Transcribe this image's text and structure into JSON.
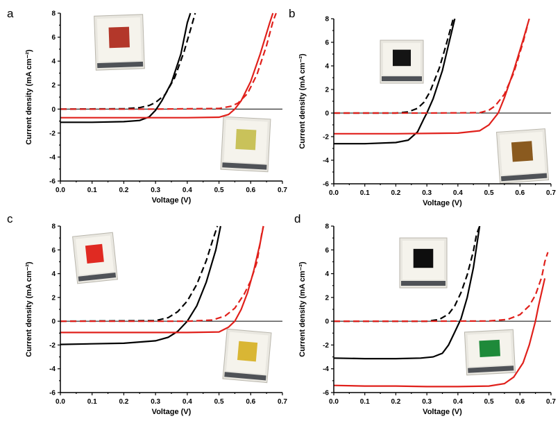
{
  "panels": [
    {
      "letter": "a",
      "device_colors": {
        "photo_top": "#b3372a",
        "photo_bottom": "#c9c25a"
      },
      "chart_data": {
        "type": "line",
        "xlabel": "Voltage (V)",
        "ylabel": "Current density (mA cm⁻²)",
        "xlim": [
          0.0,
          0.7
        ],
        "ylim": [
          -6,
          8
        ],
        "xticks": [
          "0.0",
          "0.1",
          "0.2",
          "0.3",
          "0.4",
          "0.5",
          "0.6",
          "0.7"
        ],
        "yticks": [
          "-6",
          "-4",
          "-2",
          "0",
          "2",
          "4",
          "6",
          "8"
        ],
        "series": [
          {
            "color": "#000000",
            "style": "solid",
            "points": [
              [
                0.0,
                -1.1
              ],
              [
                0.1,
                -1.1
              ],
              [
                0.2,
                -1.05
              ],
              [
                0.25,
                -0.95
              ],
              [
                0.28,
                -0.65
              ],
              [
                0.3,
                -0.1
              ],
              [
                0.32,
                0.7
              ],
              [
                0.35,
                2.2
              ],
              [
                0.38,
                4.6
              ],
              [
                0.4,
                7.2
              ],
              [
                0.41,
                8.0
              ]
            ]
          },
          {
            "color": "#000000",
            "style": "dashed",
            "points": [
              [
                0.0,
                0.0
              ],
              [
                0.2,
                0.03
              ],
              [
                0.25,
                0.12
              ],
              [
                0.28,
                0.3
              ],
              [
                0.3,
                0.55
              ],
              [
                0.33,
                1.2
              ],
              [
                0.36,
                2.6
              ],
              [
                0.39,
                4.8
              ],
              [
                0.41,
                6.6
              ],
              [
                0.425,
                8.0
              ]
            ]
          },
          {
            "color": "#e0201b",
            "style": "solid",
            "points": [
              [
                0.0,
                -0.72
              ],
              [
                0.2,
                -0.72
              ],
              [
                0.4,
                -0.72
              ],
              [
                0.5,
                -0.68
              ],
              [
                0.53,
                -0.45
              ],
              [
                0.55,
                0.0
              ],
              [
                0.57,
                0.7
              ],
              [
                0.6,
                2.3
              ],
              [
                0.63,
                4.6
              ],
              [
                0.66,
                7.2
              ],
              [
                0.67,
                8.0
              ]
            ]
          },
          {
            "color": "#e0201b",
            "style": "dashed",
            "points": [
              [
                0.0,
                0.0
              ],
              [
                0.3,
                0.0
              ],
              [
                0.5,
                0.05
              ],
              [
                0.54,
                0.25
              ],
              [
                0.56,
                0.5
              ],
              [
                0.59,
                1.3
              ],
              [
                0.62,
                2.9
              ],
              [
                0.65,
                5.3
              ],
              [
                0.67,
                7.3
              ],
              [
                0.68,
                8.0
              ]
            ]
          }
        ]
      }
    },
    {
      "letter": "b",
      "device_colors": {
        "photo_top": "#141414",
        "photo_bottom": "#8a5a1f"
      },
      "chart_data": {
        "type": "line",
        "xlabel": "Voltage (V)",
        "ylabel": "Current density (mA cm⁻²)",
        "xlim": [
          0.0,
          0.7
        ],
        "ylim": [
          -6,
          8
        ],
        "xticks": [
          "0.0",
          "0.1",
          "0.2",
          "0.3",
          "0.4",
          "0.5",
          "0.6",
          "0.7"
        ],
        "yticks": [
          "-6",
          "-4",
          "-2",
          "0",
          "2",
          "4",
          "6",
          "8"
        ],
        "series": [
          {
            "color": "#000000",
            "style": "solid",
            "points": [
              [
                0.0,
                -2.6
              ],
              [
                0.1,
                -2.6
              ],
              [
                0.2,
                -2.5
              ],
              [
                0.24,
                -2.3
              ],
              [
                0.27,
                -1.6
              ],
              [
                0.29,
                -0.5
              ],
              [
                0.3,
                0.0
              ],
              [
                0.32,
                1.2
              ],
              [
                0.35,
                3.6
              ],
              [
                0.37,
                5.8
              ],
              [
                0.39,
                8.0
              ]
            ]
          },
          {
            "color": "#000000",
            "style": "dashed",
            "points": [
              [
                0.0,
                0.0
              ],
              [
                0.2,
                0.0
              ],
              [
                0.24,
                0.1
              ],
              [
                0.27,
                0.4
              ],
              [
                0.29,
                0.9
              ],
              [
                0.31,
                1.8
              ],
              [
                0.34,
                3.8
              ],
              [
                0.36,
                5.6
              ],
              [
                0.38,
                7.5
              ],
              [
                0.385,
                8.0
              ]
            ]
          },
          {
            "color": "#e0201b",
            "style": "solid",
            "points": [
              [
                0.0,
                -1.75
              ],
              [
                0.2,
                -1.75
              ],
              [
                0.4,
                -1.7
              ],
              [
                0.47,
                -1.5
              ],
              [
                0.5,
                -1.0
              ],
              [
                0.53,
                0.0
              ],
              [
                0.55,
                1.3
              ],
              [
                0.58,
                3.6
              ],
              [
                0.61,
                6.2
              ],
              [
                0.63,
                8.0
              ]
            ]
          },
          {
            "color": "#e0201b",
            "style": "dashed",
            "points": [
              [
                0.0,
                0.0
              ],
              [
                0.3,
                0.0
              ],
              [
                0.47,
                0.03
              ],
              [
                0.5,
                0.25
              ],
              [
                0.52,
                0.6
              ],
              [
                0.55,
                1.6
              ],
              [
                0.58,
                3.4
              ],
              [
                0.61,
                6.0
              ],
              [
                0.625,
                7.5
              ]
            ]
          }
        ]
      }
    },
    {
      "letter": "c",
      "device_colors": {
        "photo_top": "#e02a22",
        "photo_bottom": "#d9b634"
      },
      "chart_data": {
        "type": "line",
        "xlabel": "Voltage (V)",
        "ylabel": "Current density (mA cm⁻²)",
        "xlim": [
          0.0,
          0.7
        ],
        "ylim": [
          -6,
          8
        ],
        "xticks": [
          "0.0",
          "0.1",
          "0.2",
          "0.3",
          "0.4",
          "0.5",
          "0.6",
          "0.7"
        ],
        "yticks": [
          "-6",
          "-4",
          "-2",
          "0",
          "2",
          "4",
          "6",
          "8"
        ],
        "series": [
          {
            "color": "#000000",
            "style": "solid",
            "points": [
              [
                0.0,
                -1.95
              ],
              [
                0.1,
                -1.9
              ],
              [
                0.2,
                -1.85
              ],
              [
                0.3,
                -1.65
              ],
              [
                0.34,
                -1.35
              ],
              [
                0.37,
                -0.85
              ],
              [
                0.4,
                0.0
              ],
              [
                0.43,
                1.3
              ],
              [
                0.46,
                3.3
              ],
              [
                0.49,
                6.0
              ],
              [
                0.505,
                8.0
              ]
            ]
          },
          {
            "color": "#000000",
            "style": "dashed",
            "points": [
              [
                0.0,
                0.0
              ],
              [
                0.3,
                0.05
              ],
              [
                0.34,
                0.3
              ],
              [
                0.37,
                0.8
              ],
              [
                0.4,
                1.7
              ],
              [
                0.43,
                3.1
              ],
              [
                0.46,
                5.1
              ],
              [
                0.48,
                6.8
              ],
              [
                0.495,
                8.0
              ]
            ]
          },
          {
            "color": "#e0201b",
            "style": "solid",
            "points": [
              [
                0.0,
                -0.95
              ],
              [
                0.2,
                -0.95
              ],
              [
                0.4,
                -0.95
              ],
              [
                0.5,
                -0.9
              ],
              [
                0.53,
                -0.5
              ],
              [
                0.55,
                0.0
              ],
              [
                0.57,
                1.0
              ],
              [
                0.59,
                2.4
              ],
              [
                0.61,
                4.3
              ],
              [
                0.63,
                6.6
              ],
              [
                0.64,
                8.0
              ]
            ]
          },
          {
            "color": "#e0201b",
            "style": "dashed",
            "points": [
              [
                0.0,
                0.0
              ],
              [
                0.4,
                0.0
              ],
              [
                0.48,
                0.1
              ],
              [
                0.52,
                0.45
              ],
              [
                0.55,
                1.1
              ],
              [
                0.58,
                2.3
              ],
              [
                0.6,
                3.4
              ],
              [
                0.62,
                5.0
              ],
              [
                0.635,
                7.4
              ],
              [
                0.64,
                8.0
              ]
            ]
          }
        ]
      }
    },
    {
      "letter": "d",
      "device_colors": {
        "photo_top": "#0e0e0e",
        "photo_bottom": "#1e8a3a"
      },
      "chart_data": {
        "type": "line",
        "xlabel": "Voltage (V)",
        "ylabel": "Current density (mA cm⁻²)",
        "xlim": [
          0.0,
          0.7
        ],
        "ylim": [
          -6,
          8
        ],
        "xticks": [
          "0.0",
          "0.1",
          "0.2",
          "0.3",
          "0.4",
          "0.5",
          "0.6",
          "0.7"
        ],
        "yticks": [
          "-6",
          "-4",
          "-2",
          "0",
          "2",
          "4",
          "6",
          "8"
        ],
        "series": [
          {
            "color": "#000000",
            "style": "solid",
            "points": [
              [
                0.0,
                -3.1
              ],
              [
                0.1,
                -3.15
              ],
              [
                0.2,
                -3.15
              ],
              [
                0.28,
                -3.1
              ],
              [
                0.32,
                -3.0
              ],
              [
                0.35,
                -2.7
              ],
              [
                0.37,
                -2.0
              ],
              [
                0.39,
                -0.9
              ],
              [
                0.41,
                0.2
              ],
              [
                0.43,
                2.0
              ],
              [
                0.45,
                4.5
              ],
              [
                0.47,
                8.0
              ]
            ]
          },
          {
            "color": "#000000",
            "style": "dashed",
            "points": [
              [
                0.0,
                0.0
              ],
              [
                0.3,
                0.0
              ],
              [
                0.34,
                0.15
              ],
              [
                0.37,
                0.6
              ],
              [
                0.39,
                1.3
              ],
              [
                0.41,
                2.4
              ],
              [
                0.43,
                3.9
              ],
              [
                0.45,
                5.9
              ],
              [
                0.46,
                7.3
              ],
              [
                0.47,
                8.0
              ]
            ]
          },
          {
            "color": "#e0201b",
            "style": "solid",
            "points": [
              [
                0.0,
                -5.4
              ],
              [
                0.1,
                -5.45
              ],
              [
                0.2,
                -5.45
              ],
              [
                0.3,
                -5.5
              ],
              [
                0.4,
                -5.5
              ],
              [
                0.5,
                -5.45
              ],
              [
                0.55,
                -5.25
              ],
              [
                0.58,
                -4.7
              ],
              [
                0.61,
                -3.5
              ],
              [
                0.63,
                -2.0
              ],
              [
                0.65,
                0.0
              ],
              [
                0.66,
                1.3
              ],
              [
                0.68,
                3.6
              ]
            ]
          },
          {
            "color": "#e0201b",
            "style": "dashed",
            "points": [
              [
                0.0,
                0.0
              ],
              [
                0.3,
                0.0
              ],
              [
                0.5,
                0.02
              ],
              [
                0.56,
                0.15
              ],
              [
                0.6,
                0.55
              ],
              [
                0.63,
                1.3
              ],
              [
                0.65,
                2.2
              ],
              [
                0.67,
                3.7
              ],
              [
                0.68,
                5.0
              ],
              [
                0.69,
                5.8
              ]
            ]
          }
        ]
      }
    }
  ]
}
